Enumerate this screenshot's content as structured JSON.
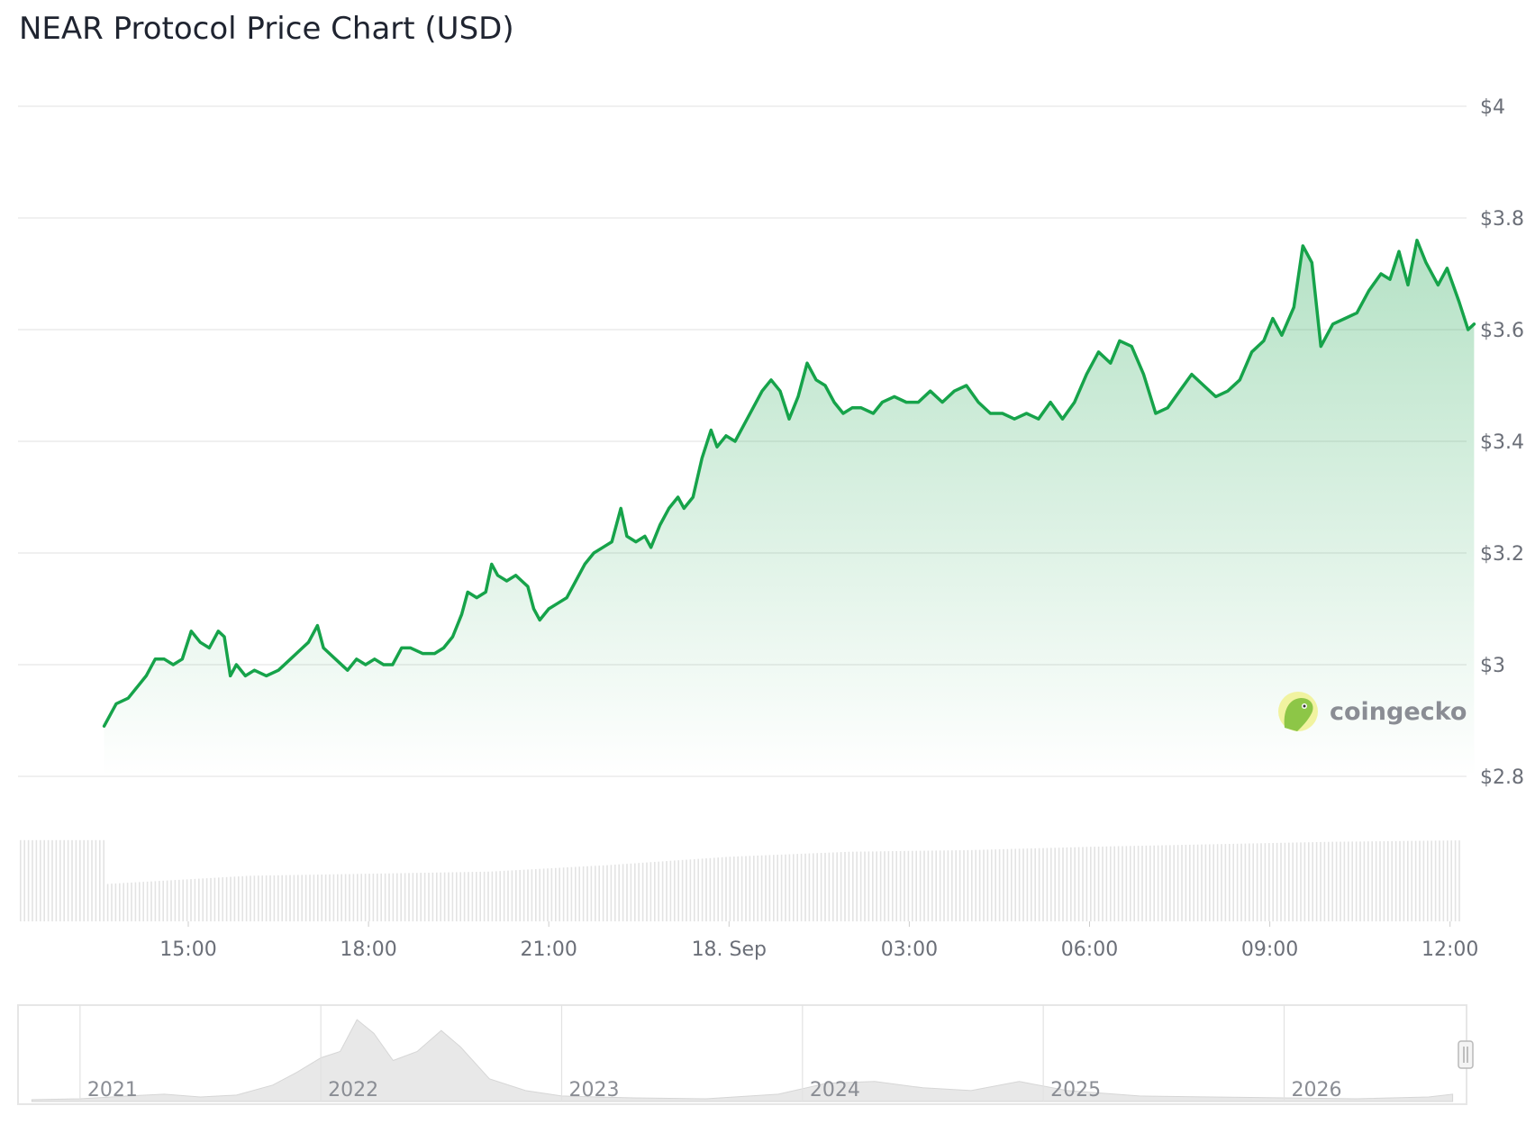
{
  "chart_data": {
    "type": "line",
    "title": "NEAR Protocol Price Chart (USD)",
    "xlabel": "",
    "ylabel": "",
    "ylim": [
      2.8,
      4.0
    ],
    "y_ticks": [
      {
        "value": 4.0,
        "label": "$4"
      },
      {
        "value": 3.8,
        "label": "$3.8"
      },
      {
        "value": 3.6,
        "label": "$3.6"
      },
      {
        "value": 3.4,
        "label": "$3.4"
      },
      {
        "value": 3.2,
        "label": "$3.2"
      },
      {
        "value": 3.0,
        "label": "$3"
      },
      {
        "value": 2.8,
        "label": "$2.8"
      }
    ],
    "x_range_hours": [
      -10.4,
      13.3
    ],
    "x_ticks": [
      {
        "hour": -9,
        "label": "15:00"
      },
      {
        "hour": -6,
        "label": "18:00"
      },
      {
        "hour": -3,
        "label": "21:00"
      },
      {
        "hour": 0,
        "label": "18. Sep"
      },
      {
        "hour": 3,
        "label": "03:00"
      },
      {
        "hour": 6,
        "label": "06:00"
      },
      {
        "hour": 9,
        "label": "09:00"
      },
      {
        "hour": 12,
        "label": "12:00"
      }
    ],
    "grid": true,
    "legend": "none",
    "colors": {
      "line": "#16a34a",
      "grid": "#e6e6e6",
      "volume": "#e3e3e3",
      "navigator": "#e8e8e8"
    },
    "series": [
      {
        "values": [
          [
            -10.4,
            2.89
          ],
          [
            -10.2,
            2.93
          ],
          [
            -10.0,
            2.94
          ],
          [
            -9.85,
            2.96
          ],
          [
            -9.7,
            2.98
          ],
          [
            -9.55,
            3.01
          ],
          [
            -9.4,
            3.01
          ],
          [
            -9.25,
            3.0
          ],
          [
            -9.1,
            3.01
          ],
          [
            -8.95,
            3.06
          ],
          [
            -8.8,
            3.04
          ],
          [
            -8.65,
            3.03
          ],
          [
            -8.5,
            3.06
          ],
          [
            -8.4,
            3.05
          ],
          [
            -8.3,
            2.98
          ],
          [
            -8.2,
            3.0
          ],
          [
            -8.05,
            2.98
          ],
          [
            -7.9,
            2.99
          ],
          [
            -7.7,
            2.98
          ],
          [
            -7.5,
            2.99
          ],
          [
            -7.3,
            3.01
          ],
          [
            -7.1,
            3.03
          ],
          [
            -7.0,
            3.04
          ],
          [
            -6.85,
            3.07
          ],
          [
            -6.75,
            3.03
          ],
          [
            -6.55,
            3.01
          ],
          [
            -6.35,
            2.99
          ],
          [
            -6.2,
            3.01
          ],
          [
            -6.05,
            3.0
          ],
          [
            -5.9,
            3.01
          ],
          [
            -5.75,
            3.0
          ],
          [
            -5.6,
            3.0
          ],
          [
            -5.45,
            3.03
          ],
          [
            -5.3,
            3.03
          ],
          [
            -5.1,
            3.02
          ],
          [
            -4.9,
            3.02
          ],
          [
            -4.75,
            3.03
          ],
          [
            -4.6,
            3.05
          ],
          [
            -4.45,
            3.09
          ],
          [
            -4.35,
            3.13
          ],
          [
            -4.2,
            3.12
          ],
          [
            -4.05,
            3.13
          ],
          [
            -3.95,
            3.18
          ],
          [
            -3.85,
            3.16
          ],
          [
            -3.7,
            3.15
          ],
          [
            -3.55,
            3.16
          ],
          [
            -3.45,
            3.15
          ],
          [
            -3.35,
            3.14
          ],
          [
            -3.25,
            3.1
          ],
          [
            -3.15,
            3.08
          ],
          [
            -3.0,
            3.1
          ],
          [
            -2.85,
            3.11
          ],
          [
            -2.7,
            3.12
          ],
          [
            -2.55,
            3.15
          ],
          [
            -2.4,
            3.18
          ],
          [
            -2.25,
            3.2
          ],
          [
            -2.1,
            3.21
          ],
          [
            -1.95,
            3.22
          ],
          [
            -1.8,
            3.28
          ],
          [
            -1.7,
            3.23
          ],
          [
            -1.55,
            3.22
          ],
          [
            -1.4,
            3.23
          ],
          [
            -1.3,
            3.21
          ],
          [
            -1.15,
            3.25
          ],
          [
            -1.0,
            3.28
          ],
          [
            -0.85,
            3.3
          ],
          [
            -0.75,
            3.28
          ],
          [
            -0.6,
            3.3
          ],
          [
            -0.45,
            3.37
          ],
          [
            -0.3,
            3.42
          ],
          [
            -0.2,
            3.39
          ],
          [
            -0.05,
            3.41
          ],
          [
            0.1,
            3.4
          ],
          [
            0.25,
            3.43
          ],
          [
            0.4,
            3.46
          ],
          [
            0.55,
            3.49
          ],
          [
            0.7,
            3.51
          ],
          [
            0.85,
            3.49
          ],
          [
            1.0,
            3.44
          ],
          [
            1.15,
            3.48
          ],
          [
            1.3,
            3.54
          ],
          [
            1.45,
            3.51
          ],
          [
            1.6,
            3.5
          ],
          [
            1.75,
            3.47
          ],
          [
            1.9,
            3.45
          ],
          [
            2.05,
            3.46
          ],
          [
            2.2,
            3.46
          ],
          [
            2.4,
            3.45
          ],
          [
            2.55,
            3.47
          ],
          [
            2.75,
            3.48
          ],
          [
            2.95,
            3.47
          ],
          [
            3.15,
            3.47
          ],
          [
            3.35,
            3.49
          ],
          [
            3.55,
            3.47
          ],
          [
            3.75,
            3.49
          ],
          [
            3.95,
            3.5
          ],
          [
            4.15,
            3.47
          ],
          [
            4.35,
            3.45
          ],
          [
            4.55,
            3.45
          ],
          [
            4.75,
            3.44
          ],
          [
            4.95,
            3.45
          ],
          [
            5.15,
            3.44
          ],
          [
            5.35,
            3.47
          ],
          [
            5.55,
            3.44
          ],
          [
            5.75,
            3.47
          ],
          [
            5.95,
            3.52
          ],
          [
            6.15,
            3.56
          ],
          [
            6.35,
            3.54
          ],
          [
            6.5,
            3.58
          ],
          [
            6.7,
            3.57
          ],
          [
            6.9,
            3.52
          ],
          [
            7.1,
            3.45
          ],
          [
            7.3,
            3.46
          ],
          [
            7.5,
            3.49
          ],
          [
            7.7,
            3.52
          ],
          [
            7.9,
            3.5
          ],
          [
            8.1,
            3.48
          ],
          [
            8.3,
            3.49
          ],
          [
            8.5,
            3.51
          ],
          [
            8.7,
            3.56
          ],
          [
            8.9,
            3.58
          ],
          [
            9.05,
            3.62
          ],
          [
            9.2,
            3.59
          ],
          [
            9.4,
            3.64
          ],
          [
            9.55,
            3.75
          ],
          [
            9.7,
            3.72
          ],
          [
            9.85,
            3.57
          ],
          [
            10.05,
            3.61
          ],
          [
            10.25,
            3.62
          ],
          [
            10.45,
            3.63
          ],
          [
            10.65,
            3.67
          ],
          [
            10.85,
            3.7
          ],
          [
            11.0,
            3.69
          ],
          [
            11.15,
            3.74
          ],
          [
            11.3,
            3.68
          ],
          [
            11.45,
            3.76
          ],
          [
            11.6,
            3.72
          ],
          [
            11.8,
            3.68
          ],
          [
            11.95,
            3.71
          ],
          [
            12.15,
            3.65
          ],
          [
            12.3,
            3.6
          ],
          [
            12.4,
            3.61
          ]
        ]
      }
    ],
    "volume": [
      [
        -10.4,
        0.45
      ],
      [
        -8.0,
        0.55
      ],
      [
        -4.0,
        0.6
      ],
      [
        -2.0,
        0.68
      ],
      [
        0.0,
        0.78
      ],
      [
        2.0,
        0.84
      ],
      [
        4.0,
        0.86
      ],
      [
        6.0,
        0.9
      ],
      [
        8.0,
        0.93
      ],
      [
        10.0,
        0.96
      ],
      [
        12.5,
        0.98
      ]
    ],
    "navigator": {
      "ticks": [
        "2021",
        "2022",
        "2023",
        "2024",
        "2025",
        "2026"
      ],
      "history": [
        [
          2020.8,
          0.02
        ],
        [
          2021.0,
          0.03
        ],
        [
          2021.2,
          0.06
        ],
        [
          2021.35,
          0.08
        ],
        [
          2021.5,
          0.05
        ],
        [
          2021.65,
          0.07
        ],
        [
          2021.8,
          0.18
        ],
        [
          2021.9,
          0.32
        ],
        [
          2022.0,
          0.48
        ],
        [
          2022.08,
          0.55
        ],
        [
          2022.15,
          0.9
        ],
        [
          2022.22,
          0.75
        ],
        [
          2022.3,
          0.45
        ],
        [
          2022.4,
          0.55
        ],
        [
          2022.5,
          0.78
        ],
        [
          2022.58,
          0.6
        ],
        [
          2022.7,
          0.25
        ],
        [
          2022.85,
          0.12
        ],
        [
          2023.0,
          0.06
        ],
        [
          2023.3,
          0.04
        ],
        [
          2023.6,
          0.03
        ],
        [
          2023.9,
          0.08
        ],
        [
          2024.1,
          0.2
        ],
        [
          2024.3,
          0.22
        ],
        [
          2024.5,
          0.15
        ],
        [
          2024.7,
          0.12
        ],
        [
          2024.9,
          0.22
        ],
        [
          2025.1,
          0.12
        ],
        [
          2025.4,
          0.06
        ],
        [
          2025.7,
          0.05
        ],
        [
          2026.0,
          0.04
        ],
        [
          2026.3,
          0.03
        ],
        [
          2026.6,
          0.05
        ],
        [
          2026.7,
          0.08
        ]
      ]
    }
  },
  "watermark": {
    "text": "coingecko",
    "icon": "gecko-logo-icon"
  }
}
